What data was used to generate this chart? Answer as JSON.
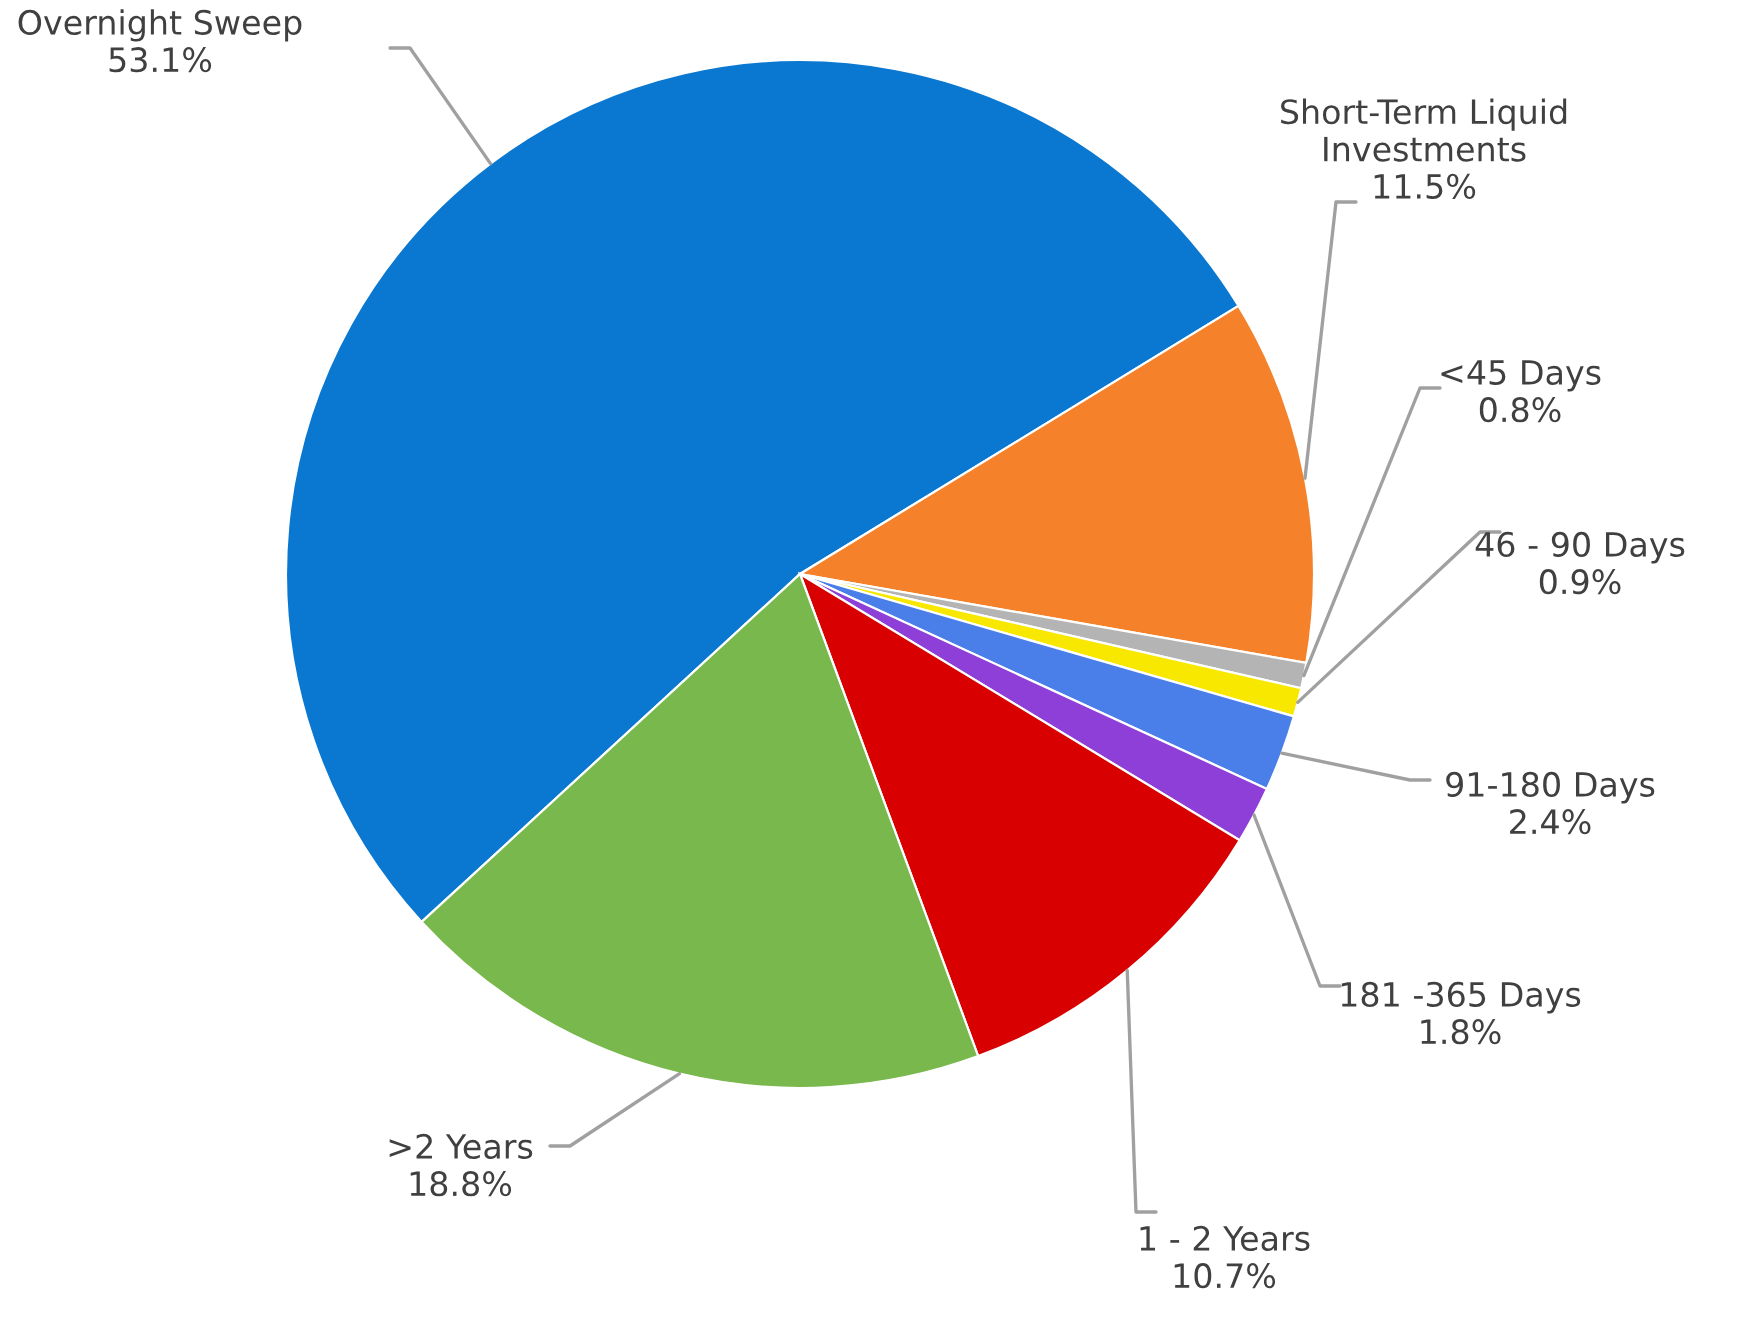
{
  "chart_data": {
    "type": "pie",
    "categories": [
      "Overnight Sweep",
      "Short-Term Liquid\nInvestments",
      "<45 Days",
      "46 - 90 Days",
      "91-180 Days",
      "181 -365 Days",
      "1 - 2 Years",
      ">2 Years"
    ],
    "values": [
      53.1,
      11.5,
      0.8,
      0.9,
      2.4,
      1.8,
      10.7,
      18.8
    ],
    "value_labels": [
      "53.1%",
      "11.5%",
      "0.8%",
      "0.9%",
      "2.4%",
      "1.8%",
      "10.7%",
      "18.8%"
    ],
    "colors": [
      "#0a78d0",
      "#f5822a",
      "#b4b4b4",
      "#f8e800",
      "#4a7ee8",
      "#8e3fd8",
      "#d80000",
      "#78b84c"
    ],
    "legend": false
  }
}
